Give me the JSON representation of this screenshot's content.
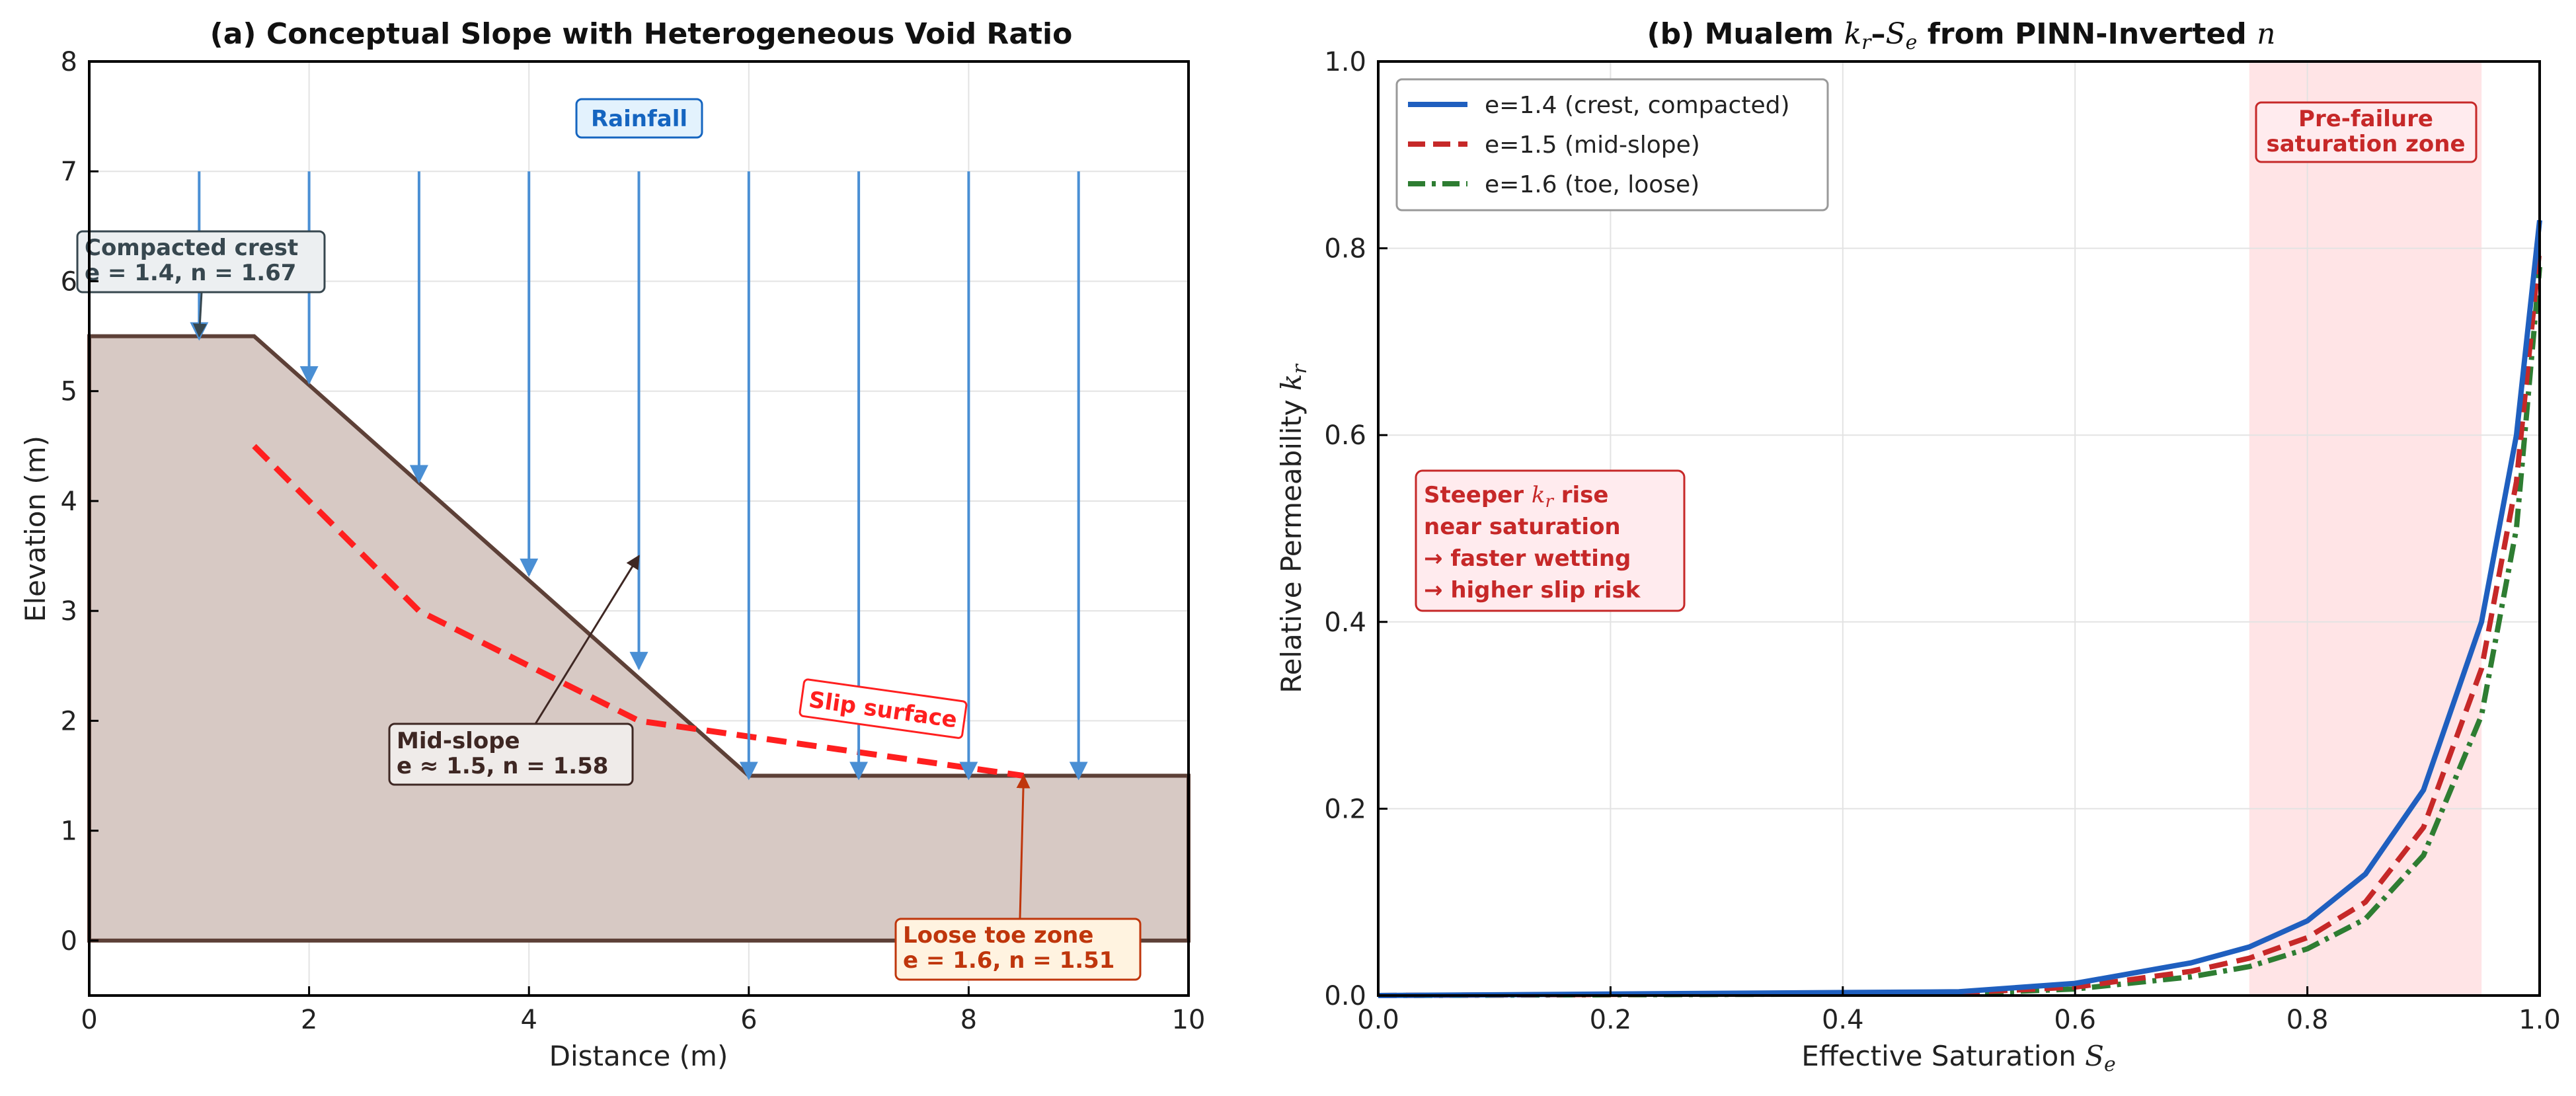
{
  "chart_data": [
    {
      "type": "area",
      "title": "(a) Conceptual Slope with Heterogeneous Void Ratio",
      "xlabel": "Distance (m)",
      "ylabel": "Elevation (m)",
      "xlim": [
        0,
        10
      ],
      "ylim": [
        -0.5,
        8
      ],
      "xticks": [
        "0",
        "2",
        "4",
        "6",
        "8",
        "10"
      ],
      "yticks": [
        "0",
        "1",
        "2",
        "3",
        "4",
        "5",
        "6",
        "7",
        "8"
      ],
      "grid": true,
      "slope_profile": {
        "x": [
          0,
          1.5,
          6,
          10,
          10,
          0
        ],
        "y": [
          5.5,
          5.5,
          1.5,
          1.5,
          0,
          0
        ],
        "color": "#d7c9c4",
        "edge_color": "#5d4037"
      },
      "slip_surface": {
        "label": "Slip surface",
        "x": [
          1.5,
          3,
          5,
          8.5
        ],
        "y": [
          4.5,
          3,
          2,
          1.5
        ],
        "color": "#ff1f1f"
      },
      "rainfall": {
        "label": "Rainfall",
        "x": [
          1,
          2,
          3,
          4,
          5,
          6,
          7,
          8,
          9
        ],
        "y_start": 7,
        "y_end": [
          5.5,
          5.1,
          4.2,
          3.35,
          2.5,
          1.5,
          1.5,
          1.5,
          1.5
        ],
        "color": "#4a8fd4"
      },
      "annotations": [
        {
          "name": "crest",
          "line1": "Compacted crest",
          "line2": "e = 1.4,  n = 1.67",
          "text_color": "#37474f",
          "box_color": "#eceff1",
          "border_color": "#37474f",
          "target": [
            1,
            5.5
          ]
        },
        {
          "name": "mid",
          "line1": "Mid-slope",
          "line2": "e ≈ 1.5,  n = 1.58",
          "text_color": "#3e2723",
          "box_color": "#efebe9",
          "border_color": "#3e2723",
          "target": [
            5,
            3.5
          ]
        },
        {
          "name": "toe",
          "line1": "Loose toe zone",
          "line2": "e = 1.6,  n = 1.51",
          "text_color": "#bf360c",
          "box_color": "#fff3e0",
          "border_color": "#bf360c",
          "target": [
            8.5,
            1.5
          ]
        }
      ]
    },
    {
      "type": "line",
      "title_prefix": "(b) Mualem ",
      "title_kr": "k",
      "title_kr_sub": "r",
      "title_dash": "–",
      "title_se": "S",
      "title_se_sub": "e",
      "title_mid": " from PINN-Inverted ",
      "title_n": "n",
      "xlabel": "Effective Saturation ",
      "xlabel_sym": "S",
      "xlabel_sub": "e",
      "ylabel": "Relative Permeability ",
      "ylabel_sym": "k",
      "ylabel_sub": "r",
      "xlim": [
        0,
        1
      ],
      "ylim": [
        0,
        1
      ],
      "xticks": [
        "0.0",
        "0.2",
        "0.4",
        "0.6",
        "0.8",
        "1.0"
      ],
      "yticks": [
        "0.0",
        "0.2",
        "0.4",
        "0.6",
        "0.8",
        "1.0"
      ],
      "grid": true,
      "legend_position": "top-left",
      "series": [
        {
          "name": "e=1.4 (crest, compacted)",
          "n": 1.67,
          "color": "#1f5fbf",
          "style": "solid",
          "x": [
            0.5,
            0.6,
            0.7,
            0.75,
            0.8,
            0.85,
            0.9,
            0.95,
            0.98,
            1.0
          ],
          "values": [
            0.004,
            0.013,
            0.035,
            0.052,
            0.08,
            0.13,
            0.22,
            0.4,
            0.6,
            0.83
          ]
        },
        {
          "name": "e=1.5 (mid-slope)",
          "n": 1.58,
          "color": "#c62828",
          "style": "dashed",
          "x": [
            0.5,
            0.6,
            0.7,
            0.75,
            0.8,
            0.85,
            0.9,
            0.95,
            0.98,
            1.0
          ],
          "values": [
            0.003,
            0.009,
            0.026,
            0.04,
            0.062,
            0.1,
            0.18,
            0.35,
            0.55,
            0.8
          ]
        },
        {
          "name": "e=1.6 (toe, loose)",
          "n": 1.51,
          "color": "#2e7d32",
          "style": "dashdot",
          "x": [
            0.5,
            0.6,
            0.7,
            0.75,
            0.8,
            0.85,
            0.9,
            0.95,
            0.98,
            1.0
          ],
          "values": [
            0.002,
            0.007,
            0.02,
            0.031,
            0.05,
            0.082,
            0.15,
            0.3,
            0.5,
            0.78
          ]
        }
      ],
      "shaded_region": {
        "x_range": [
          0.75,
          0.95
        ],
        "line1": "Pre-failure",
        "line2": "saturation zone",
        "color": "#ffcdd2",
        "text_color": "#c62828"
      },
      "note": {
        "line1_prefix": "Steeper ",
        "line1_sym": "k",
        "line1_sub": "r",
        "line1_suffix": " rise",
        "line2": "near saturation",
        "line3": "→ faster wetting",
        "line4": "→ higher slip risk",
        "text_color": "#c62828",
        "box_color": "#ffebee",
        "border_color": "#c62828"
      }
    }
  ]
}
